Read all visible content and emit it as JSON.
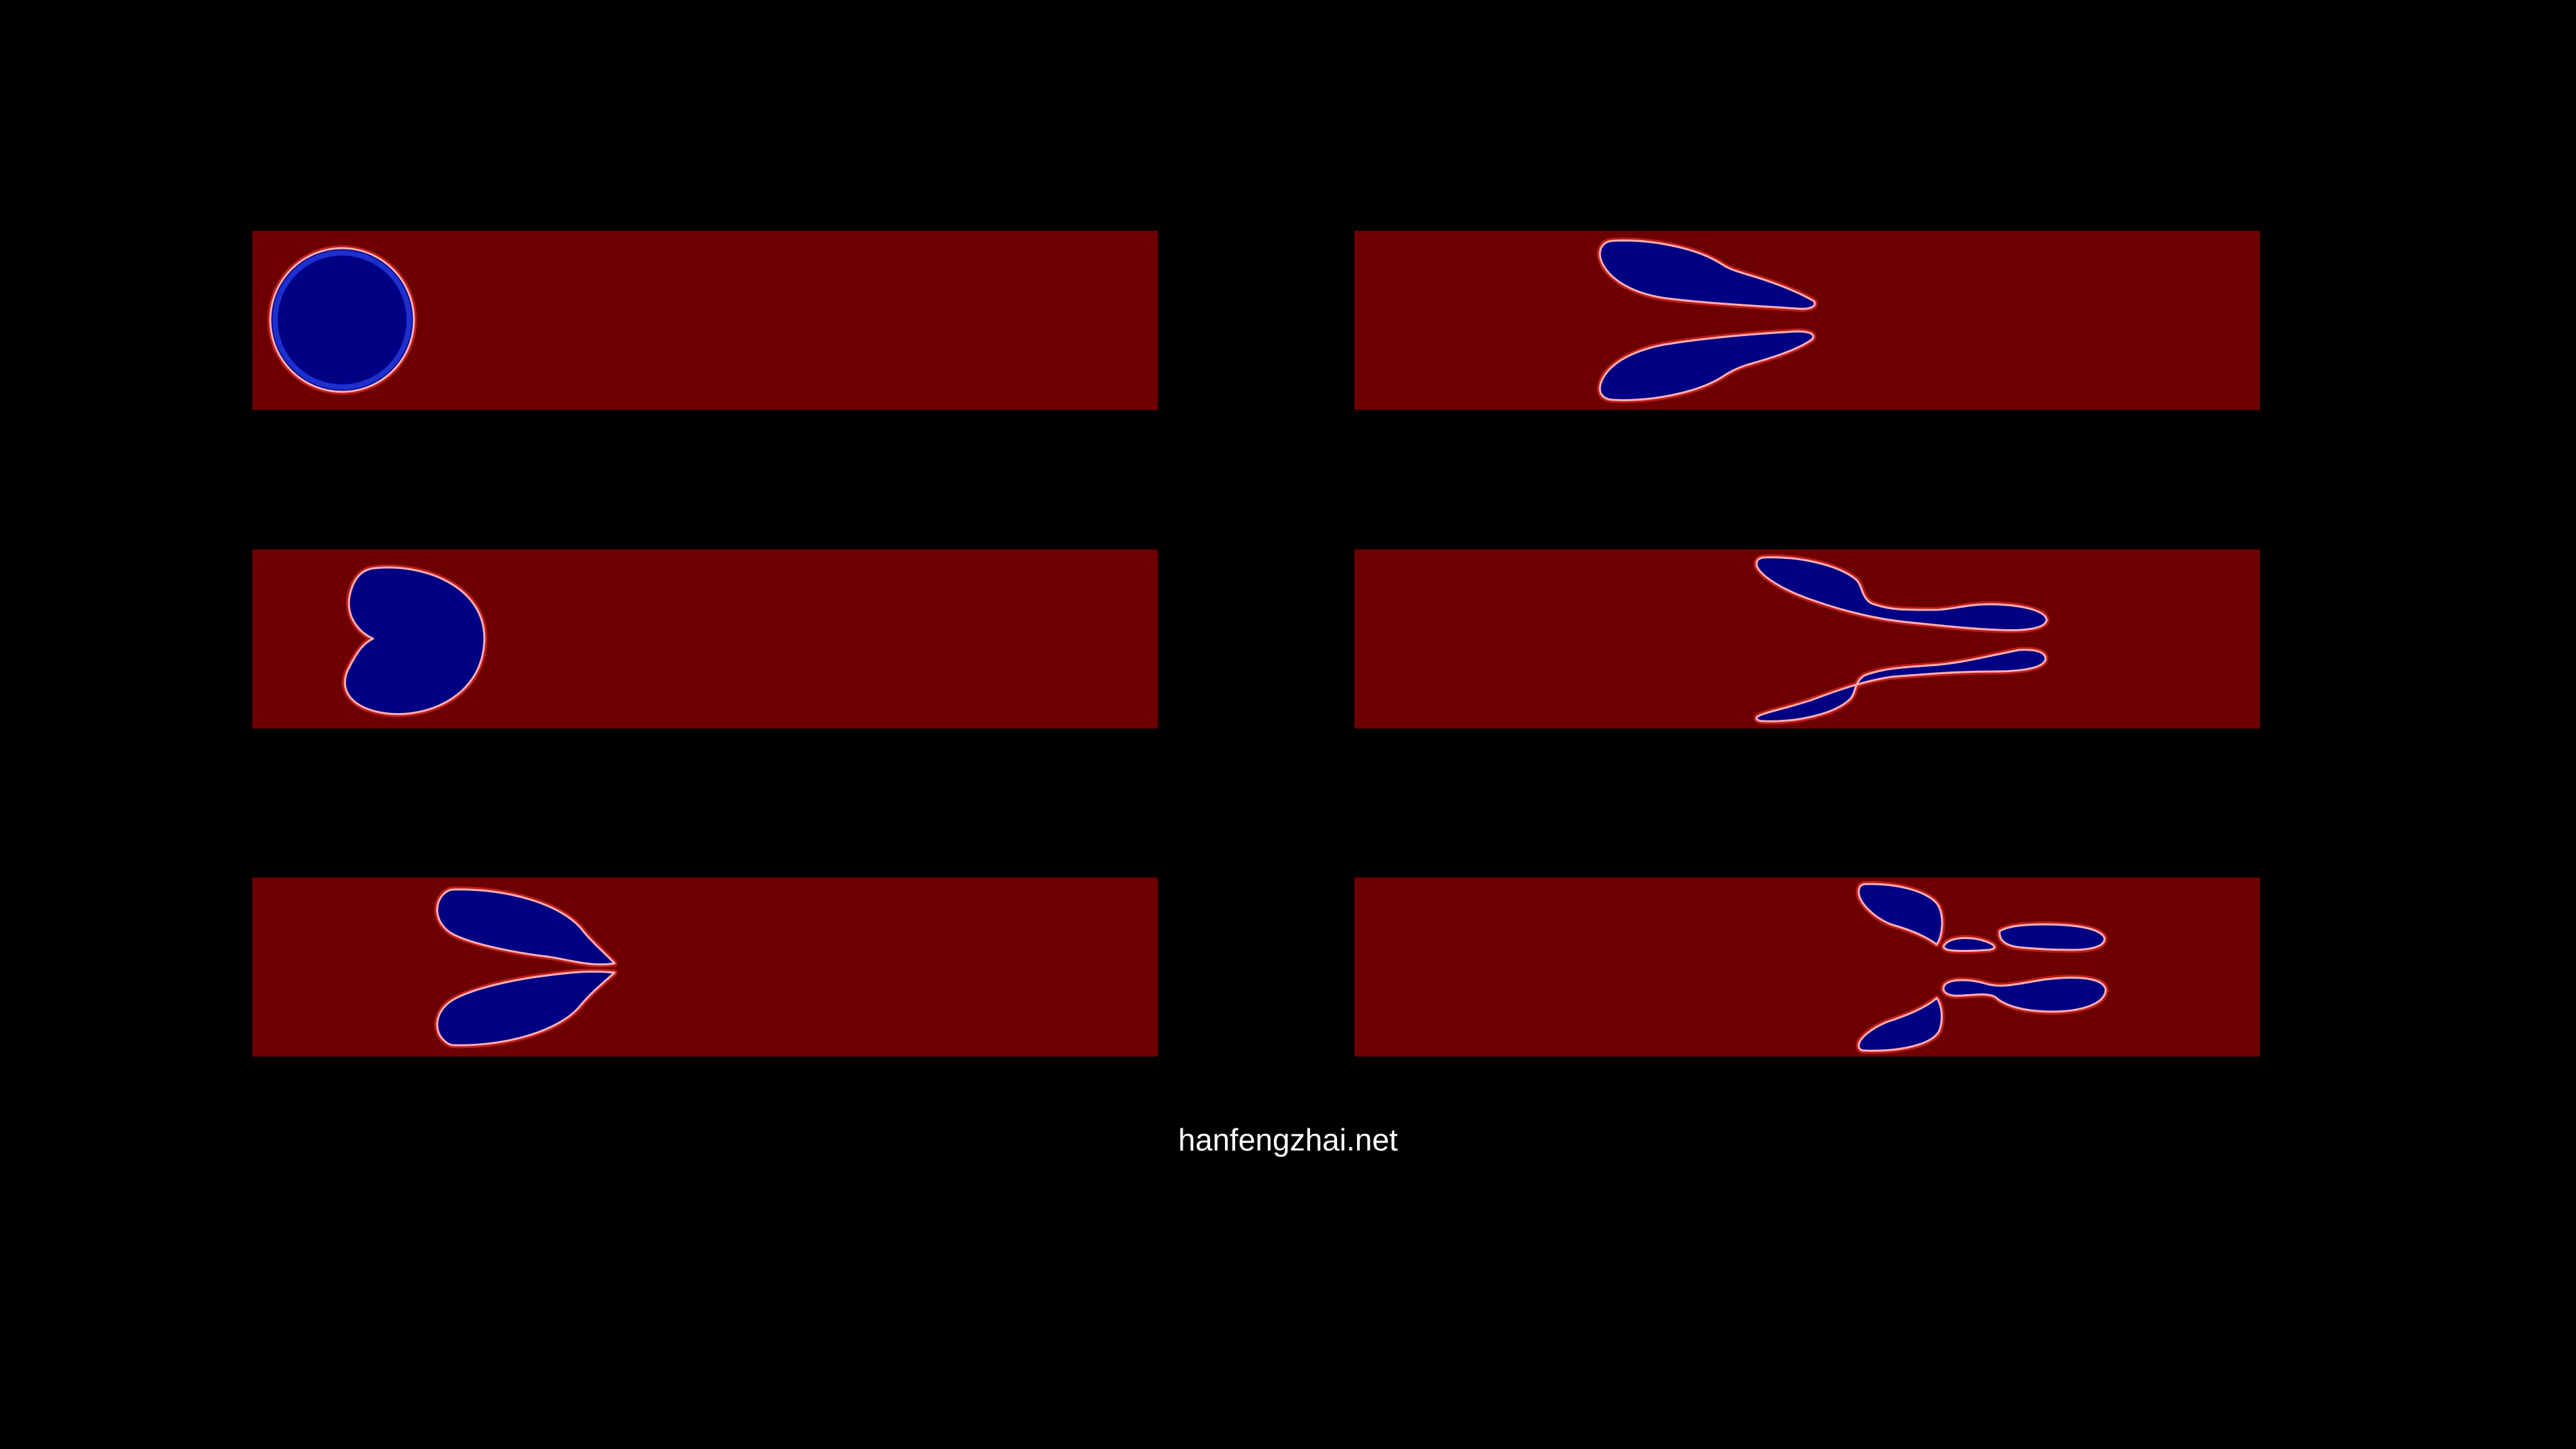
{
  "colors": {
    "background": "#000000",
    "channel": "#6d0000",
    "bubble": "#000085",
    "interface": "#ff3030"
  },
  "watermark": {
    "text": "hanfengzhai.net"
  }
}
